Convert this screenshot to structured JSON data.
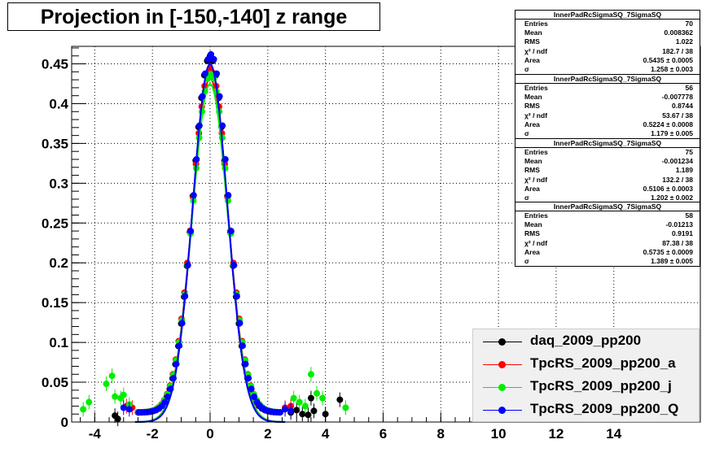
{
  "title": "Projection in [-150,-140] z range",
  "chart_data": {
    "type": "scatter",
    "xlim": [
      -4.8,
      17
    ],
    "ylim": [
      0,
      0.472
    ],
    "x_ticks": [
      "-4",
      "-2",
      "0",
      "2",
      "4",
      "6",
      "8",
      "10",
      "12",
      "14"
    ],
    "x_tick_values": [
      -4,
      -2,
      0,
      2,
      4,
      6,
      8,
      10,
      12,
      14
    ],
    "y_ticks": [
      "0",
      "0.05",
      "0.1",
      "0.15",
      "0.2",
      "0.25",
      "0.3",
      "0.35",
      "0.4",
      "0.45"
    ],
    "y_tick_values": [
      0,
      0.05,
      0.1,
      0.15,
      0.2,
      0.25,
      0.3,
      0.35,
      0.4,
      0.45
    ],
    "grid": true,
    "legend_position": "bottom-right",
    "series": [
      {
        "name": "daq_2009_pp200",
        "color": "#000000",
        "sigma": 0.6,
        "peak": 0.448,
        "tail_points": [
          [
            -3.3,
            0.008
          ],
          [
            -3.2,
            0.004
          ],
          [
            2.8,
            0.012
          ],
          [
            3.0,
            0.015
          ],
          [
            3.2,
            0.01
          ],
          [
            3.4,
            0.009
          ],
          [
            3.5,
            0.03
          ],
          [
            3.6,
            0.014
          ],
          [
            4.0,
            0.01
          ],
          [
            4.5,
            0.028
          ]
        ]
      },
      {
        "name": "TpcRS_2009_pp200_a",
        "color": "#ff0000",
        "sigma": 0.62,
        "peak": 0.432,
        "tail_points": [
          [
            -2.9,
            0.02
          ],
          [
            -2.7,
            0.018
          ],
          [
            2.6,
            0.018
          ],
          [
            2.8,
            0.02
          ]
        ]
      },
      {
        "name": "TpcRS_2009_pp200_j",
        "color": "#00ee00",
        "sigma": 0.62,
        "peak": 0.425,
        "tail_points": [
          [
            -4.4,
            0.016
          ],
          [
            -4.2,
            0.025
          ],
          [
            -3.6,
            0.048
          ],
          [
            -3.4,
            0.058
          ],
          [
            -3.3,
            0.032
          ],
          [
            -3.1,
            0.03
          ],
          [
            -3.0,
            0.034
          ],
          [
            -2.8,
            0.022
          ],
          [
            2.9,
            0.03
          ],
          [
            3.1,
            0.025
          ],
          [
            3.3,
            0.02
          ],
          [
            3.5,
            0.06
          ],
          [
            3.7,
            0.036
          ],
          [
            3.9,
            0.03
          ],
          [
            4.7,
            0.018
          ]
        ]
      },
      {
        "name": "TpcRS_2009_pp200_Q",
        "color": "#0000ff",
        "sigma": 0.6,
        "peak": 0.45,
        "tail_points": [
          [
            -3.0,
            0.018
          ],
          [
            -2.8,
            0.016
          ],
          [
            2.6,
            0.016
          ],
          [
            2.8,
            0.014
          ]
        ]
      }
    ]
  },
  "stats_boxes": [
    {
      "title": "InnerPadRcSigmaSQ_7SigmaSQ",
      "rows": [
        {
          "k": "Entries",
          "v": "70"
        },
        {
          "k": "Mean",
          "v": "0.008362"
        },
        {
          "k": "RMS",
          "v": "1.022"
        },
        {
          "k": "χ² / ndf",
          "v": "182.7 / 38"
        },
        {
          "k": "Area",
          "v": "0.5435 ± 0.0005"
        },
        {
          "k": "σ",
          "v": "1.258 ± 0.003"
        }
      ]
    },
    {
      "title": "InnerPadRcSigmaSQ_7SigmaSQ",
      "rows": [
        {
          "k": "Entries",
          "v": "56"
        },
        {
          "k": "Mean",
          "v": "-0.007778"
        },
        {
          "k": "RMS",
          "v": "0.8744"
        },
        {
          "k": "χ² / ndf",
          "v": "53.67 / 38"
        },
        {
          "k": "Area",
          "v": "0.5224 ± 0.0008"
        },
        {
          "k": "σ",
          "v": "1.179 ± 0.005"
        }
      ]
    },
    {
      "title": "InnerPadRcSigmaSQ_7SigmaSQ",
      "rows": [
        {
          "k": "Entries",
          "v": "75"
        },
        {
          "k": "Mean",
          "v": "-0.001234"
        },
        {
          "k": "RMS",
          "v": "1.189"
        },
        {
          "k": "χ² / ndf",
          "v": "132.2 / 38"
        },
        {
          "k": "Area",
          "v": "0.5106 ± 0.0003"
        },
        {
          "k": "σ",
          "v": "1.202 ± 0.002"
        }
      ]
    },
    {
      "title": "InnerPadRcSigmaSQ_7SigmaSQ",
      "rows": [
        {
          "k": "Entries",
          "v": "58"
        },
        {
          "k": "Mean",
          "v": "-0.01213"
        },
        {
          "k": "RMS",
          "v": "0.9191"
        },
        {
          "k": "χ² / ndf",
          "v": "87.38 / 38"
        },
        {
          "k": "Area",
          "v": "0.5735 ± 0.0009"
        },
        {
          "k": "σ",
          "v": "1.389 ± 0.005"
        }
      ]
    }
  ]
}
